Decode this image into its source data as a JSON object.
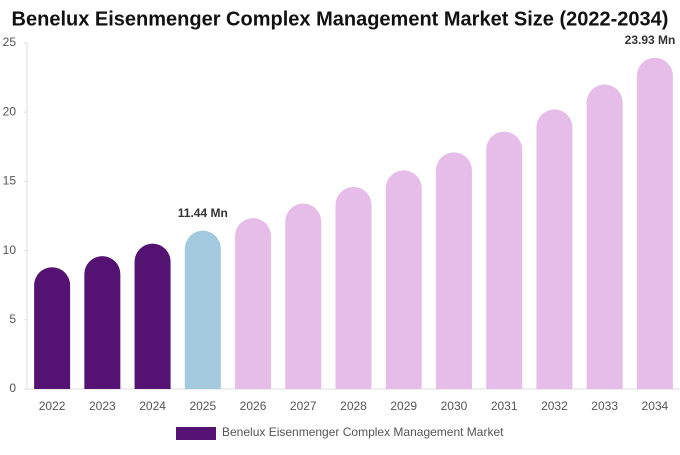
{
  "chart_data": {
    "type": "bar",
    "title": "Benelux Eisenmenger Complex Management Market Size (2022-2034)",
    "categories": [
      "2022",
      "2023",
      "2024",
      "2025",
      "2026",
      "2027",
      "2028",
      "2029",
      "2030",
      "2031",
      "2032",
      "2033",
      "2034"
    ],
    "series": [
      {
        "name": "Benelux Eisenmenger Complex Management Market",
        "color": "#541273",
        "values": [
          8.8,
          9.6,
          10.5,
          11.44,
          12.35,
          13.4,
          14.6,
          15.8,
          17.1,
          18.6,
          20.2,
          22.0,
          23.93
        ],
        "value_labels": [
          null,
          null,
          null,
          "11.44 Mn",
          null,
          null,
          null,
          null,
          null,
          null,
          null,
          null,
          "23.93 Mn"
        ],
        "colors": [
          "#541273",
          "#541273",
          "#541273",
          "#a3c9de",
          "#e6bde9",
          "#e6bde9",
          "#e6bde9",
          "#e6bde9",
          "#e6bde9",
          "#e6bde9",
          "#e6bde9",
          "#e6bde9",
          "#e6bde9"
        ]
      }
    ],
    "ylim": [
      0,
      25
    ],
    "yticks": [
      0,
      5,
      10,
      15,
      20,
      25
    ],
    "grid": false
  }
}
